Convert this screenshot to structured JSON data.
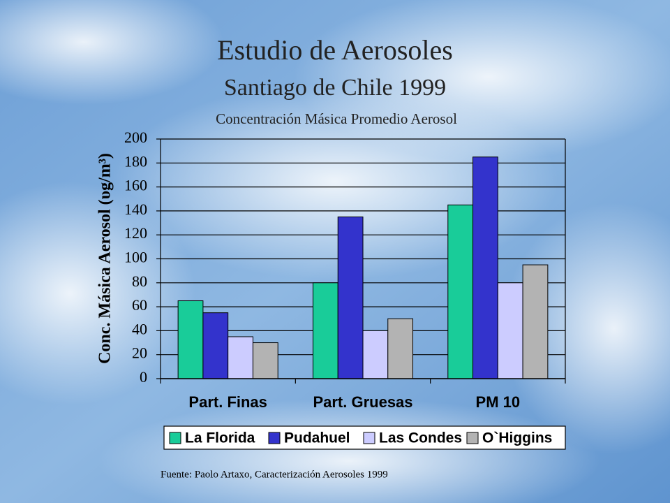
{
  "chart_data": {
    "type": "bar",
    "title": "Estudio de Aerosoles",
    "subtitle": "Santiago de Chile 1999",
    "plot_title": "Concentración Másica Promedio Aerosol",
    "ylabel": "Conc. Másica Aerosol (υg/m³)",
    "source": "Fuente: Paolo Artaxo, Caracterización Aerosoles 1999",
    "categories": [
      "Part. Finas",
      "Part. Gruesas",
      "PM 10"
    ],
    "series": [
      {
        "name": "La Florida",
        "color": "#19cc99",
        "values": [
          65,
          80,
          145
        ]
      },
      {
        "name": "Pudahuel",
        "color": "#3333cc",
        "values": [
          55,
          135,
          185
        ]
      },
      {
        "name": "Las Condes",
        "color": "#ccccff",
        "values": [
          35,
          40,
          80
        ]
      },
      {
        "name": "O`Higgins",
        "color": "#b3b3b3",
        "values": [
          30,
          50,
          95
        ]
      }
    ],
    "ylim": [
      0,
      200
    ],
    "yticks": [
      0,
      20,
      40,
      60,
      80,
      100,
      120,
      140,
      160,
      180,
      200
    ],
    "grid": true,
    "legend": "bottom"
  }
}
